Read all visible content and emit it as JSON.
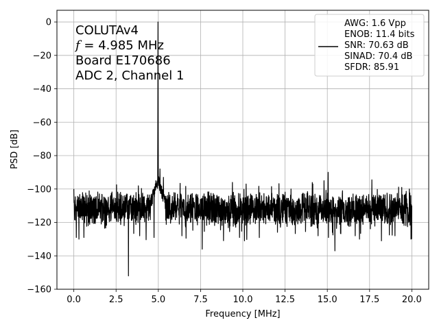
{
  "chart_data": {
    "type": "line",
    "xlabel": "Frequency [MHz]",
    "ylabel": "PSD [dB]",
    "xlim": [
      -1.0,
      21.0
    ],
    "ylim": [
      -160,
      7
    ],
    "xticks": [
      0.0,
      2.5,
      5.0,
      7.5,
      10.0,
      12.5,
      15.0,
      17.5,
      20.0
    ],
    "xtick_labels": [
      "0.0",
      "2.5",
      "5.0",
      "7.5",
      "10.0",
      "12.5",
      "15.0",
      "17.5",
      "20.0"
    ],
    "yticks": [
      0,
      -20,
      -40,
      -60,
      -80,
      -100,
      -120,
      -140,
      -160
    ],
    "ytick_labels": [
      "0",
      "−20",
      "−40",
      "−60",
      "−80",
      "−100",
      "−120",
      "−140",
      "−160"
    ],
    "grid": true,
    "annotation_lines": [
      "COLUTAv4",
      "f = 4.985 MHz",
      "Board E170686",
      "ADC 2, Channel 1"
    ],
    "legend": {
      "location": "upper right",
      "lines": [
        "AWG: 1.6 Vpp",
        "ENOB: 11.4 bits",
        "SNR: 70.63 dB",
        "SINAD: 70.4 dB",
        "SFDR: 85.91"
      ]
    },
    "series": [
      {
        "color": "#000000",
        "noise_floor": -112,
        "signal": {
          "x": 4.985,
          "y": 0
        },
        "spikes": [
          {
            "x": 0.0,
            "y": -100
          },
          {
            "x": 0.15,
            "y": -129
          },
          {
            "x": 0.3,
            "y": -130
          },
          {
            "x": 0.6,
            "y": -129
          },
          {
            "x": 3.23,
            "y": -152
          },
          {
            "x": 3.9,
            "y": -128
          },
          {
            "x": 4.75,
            "y": -129
          },
          {
            "x": 4.85,
            "y": -95
          },
          {
            "x": 5.1,
            "y": -88
          },
          {
            "x": 5.3,
            "y": -93
          },
          {
            "x": 6.4,
            "y": -128
          },
          {
            "x": 7.6,
            "y": -136
          },
          {
            "x": 9.8,
            "y": -129
          },
          {
            "x": 10.1,
            "y": -131
          },
          {
            "x": 10.2,
            "y": -97
          },
          {
            "x": 12.85,
            "y": -100
          },
          {
            "x": 14.45,
            "y": -128
          },
          {
            "x": 14.8,
            "y": -95
          },
          {
            "x": 15.05,
            "y": -90
          },
          {
            "x": 15.3,
            "y": -126
          },
          {
            "x": 15.45,
            "y": -137
          },
          {
            "x": 15.9,
            "y": -101
          },
          {
            "x": 16.65,
            "y": -128
          },
          {
            "x": 16.9,
            "y": -130
          },
          {
            "x": 18.2,
            "y": -131
          },
          {
            "x": 19.0,
            "y": -128
          },
          {
            "x": 19.4,
            "y": -99
          },
          {
            "x": 19.85,
            "y": -100
          },
          {
            "x": 19.95,
            "y": -130
          },
          {
            "x": 20.0,
            "y": -110
          }
        ]
      }
    ]
  }
}
